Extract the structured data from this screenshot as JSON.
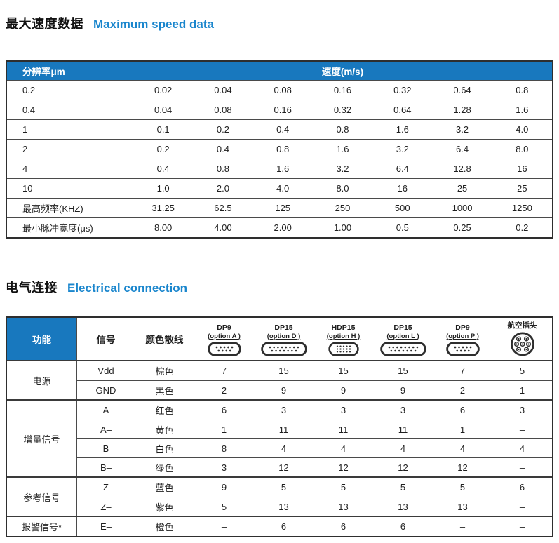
{
  "colors": {
    "header_blue": "#1878be",
    "title_blue": "#1a86cd",
    "border_dark": "#2e2e2e",
    "row_line": "#4a4a4a"
  },
  "section1": {
    "title_zh": "最大速度数据",
    "title_en": "Maximum speed data"
  },
  "speed_table": {
    "col1_header": "分辨率μm",
    "col2_header": "速度(m/s)",
    "rows": [
      {
        "label": "0.2",
        "values": [
          "0.02",
          "0.04",
          "0.08",
          "0.16",
          "0.32",
          "0.64",
          "0.8"
        ]
      },
      {
        "label": "0.4",
        "values": [
          "0.04",
          "0.08",
          "0.16",
          "0.32",
          "0.64",
          "1.28",
          "1.6"
        ]
      },
      {
        "label": "1",
        "values": [
          "0.1",
          "0.2",
          "0.4",
          "0.8",
          "1.6",
          "3.2",
          "4.0"
        ]
      },
      {
        "label": "2",
        "values": [
          "0.2",
          "0.4",
          "0.8",
          "1.6",
          "3.2",
          "6.4",
          "8.0"
        ]
      },
      {
        "label": "4",
        "values": [
          "0.4",
          "0.8",
          "1.6",
          "3.2",
          "6.4",
          "12.8",
          "16"
        ]
      },
      {
        "label": "10",
        "values": [
          "1.0",
          "2.0",
          "4.0",
          "8.0",
          "16",
          "25",
          "25"
        ]
      },
      {
        "label": "最高频率(KHZ)",
        "values": [
          "31.25",
          "62.5",
          "125",
          "250",
          "500",
          "1000",
          "1250"
        ]
      },
      {
        "label": "最小脉冲宽度(μs)",
        "values": [
          "8.00",
          "4.00",
          "2.00",
          "1.00",
          "0.5",
          "0.25",
          "0.2"
        ]
      }
    ]
  },
  "section2": {
    "title_zh": "电气连接",
    "title_en": "Electrical connection"
  },
  "connection_table": {
    "col_headers": [
      "功能",
      "信号",
      "颜色散线"
    ],
    "connectors": [
      {
        "name": "DP9",
        "option": "(option A )",
        "icon": "dsub9"
      },
      {
        "name": "DP15",
        "option": "(option D )",
        "icon": "dsub15"
      },
      {
        "name": "HDP15",
        "option": "(option H )",
        "icon": "hd15"
      },
      {
        "name": "DP15",
        "option": "(option L )",
        "icon": "dsub15"
      },
      {
        "name": "DP9",
        "option": "(option P )",
        "icon": "dsub9"
      },
      {
        "name": "航空插头",
        "option": "",
        "icon": "aviation"
      }
    ],
    "groups": [
      {
        "label": "电源",
        "rows": [
          {
            "signal": "Vdd",
            "color": "棕色",
            "pins": [
              "7",
              "15",
              "15",
              "15",
              "7",
              "5"
            ]
          },
          {
            "signal": "GND",
            "color": "黑色",
            "pins": [
              "2",
              "9",
              "9",
              "9",
              "2",
              "1"
            ]
          }
        ]
      },
      {
        "label": "增量信号",
        "rows": [
          {
            "signal": "A",
            "color": "红色",
            "pins": [
              "6",
              "3",
              "3",
              "3",
              "6",
              "3"
            ]
          },
          {
            "signal": "A–",
            "color": "黄色",
            "pins": [
              "1",
              "11",
              "11",
              "11",
              "1",
              "–"
            ]
          },
          {
            "signal": "B",
            "color": "白色",
            "pins": [
              "8",
              "4",
              "4",
              "4",
              "4",
              "4"
            ]
          },
          {
            "signal": "B–",
            "color": "绿色",
            "pins": [
              "3",
              "12",
              "12",
              "12",
              "12",
              "–"
            ]
          }
        ]
      },
      {
        "label": "参考信号",
        "rows": [
          {
            "signal": "Z",
            "color": "蓝色",
            "pins": [
              "9",
              "5",
              "5",
              "5",
              "5",
              "6"
            ]
          },
          {
            "signal": "Z–",
            "color": "紫色",
            "pins": [
              "5",
              "13",
              "13",
              "13",
              "13",
              "–"
            ]
          }
        ]
      },
      {
        "label": "报警信号*",
        "rows": [
          {
            "signal": "E–",
            "color": "橙色",
            "pins": [
              "–",
              "6",
              "6",
              "6",
              "–",
              "–"
            ]
          }
        ]
      }
    ]
  }
}
